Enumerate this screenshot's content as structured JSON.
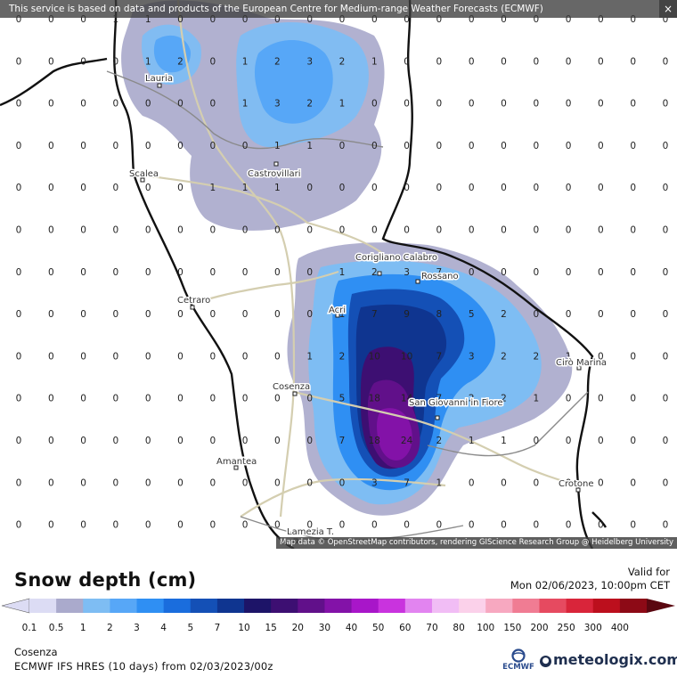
{
  "banner": {
    "text": "This service is based on data and products of the European Centre for Medium-range Weather Forecasts (ECMWF)",
    "close_symbol": "×"
  },
  "attribution": "Map data © OpenStreetMap contributors, rendering GIScience Research Group @ Heidelberg University",
  "cities": [
    "Lauria",
    "Castrovillari",
    "Scalea",
    "Corigliano Calabro",
    "Rossano",
    "Acri",
    "Cetraro",
    "Cosenza",
    "San Giovanni in Fiore",
    "Cirò Marina",
    "Amantea",
    "Crotone",
    "Lamezia T."
  ],
  "grid_values": [
    [
      "0",
      "0",
      "0",
      "1",
      "1",
      "0",
      "0",
      "0",
      "0",
      "0",
      "0",
      "0",
      "0",
      "0",
      "0",
      "0",
      "0",
      "0",
      "0",
      "0",
      "0"
    ],
    [
      "0",
      "0",
      "0",
      "0",
      "1",
      "2",
      "0",
      "1",
      "2",
      "3",
      "2",
      "1",
      "0",
      "0",
      "0",
      "0",
      "0",
      "0",
      "0",
      "0",
      "0"
    ],
    [
      "0",
      "0",
      "0",
      "0",
      "0",
      "0",
      "0",
      "1",
      "3",
      "2",
      "1",
      "0",
      "0",
      "0",
      "0",
      "0",
      "0",
      "0",
      "0",
      "0",
      "0"
    ],
    [
      "0",
      "0",
      "0",
      "0",
      "0",
      "0",
      "0",
      "0",
      "1",
      "1",
      "0",
      "0",
      "0",
      "0",
      "0",
      "0",
      "0",
      "0",
      "0",
      "0",
      "0"
    ],
    [
      "0",
      "0",
      "0",
      "0",
      "0",
      "0",
      "1",
      "1",
      "1",
      "0",
      "0",
      "0",
      "0",
      "0",
      "0",
      "0",
      "0",
      "0",
      "0",
      "0",
      "0"
    ],
    [
      "0",
      "0",
      "0",
      "0",
      "0",
      "0",
      "0",
      "0",
      "0",
      "0",
      "0",
      "0",
      "0",
      "0",
      "0",
      "0",
      "0",
      "0",
      "0",
      "0",
      "0"
    ],
    [
      "0",
      "0",
      "0",
      "0",
      "0",
      "0",
      "0",
      "0",
      "0",
      "0",
      "1",
      "2",
      "3",
      "7",
      "0",
      "0",
      "0",
      "0",
      "0",
      "0",
      "0"
    ],
    [
      "0",
      "0",
      "0",
      "0",
      "0",
      "0",
      "0",
      "0",
      "0",
      "0",
      "1",
      "7",
      "9",
      "8",
      "5",
      "2",
      "0",
      "0",
      "0",
      "0",
      "0"
    ],
    [
      "0",
      "0",
      "0",
      "0",
      "0",
      "0",
      "0",
      "0",
      "0",
      "1",
      "2",
      "10",
      "10",
      "7",
      "3",
      "2",
      "2",
      "1",
      "0",
      "0",
      "0"
    ],
    [
      "0",
      "0",
      "0",
      "0",
      "0",
      "0",
      "0",
      "0",
      "0",
      "0",
      "5",
      "18",
      "14",
      "7",
      "2",
      "2",
      "1",
      "0",
      "0",
      "0",
      "0"
    ],
    [
      "0",
      "0",
      "0",
      "0",
      "0",
      "0",
      "0",
      "0",
      "0",
      "0",
      "7",
      "18",
      "24",
      "2",
      "1",
      "1",
      "0",
      "0",
      "0",
      "0",
      "0"
    ],
    [
      "0",
      "0",
      "0",
      "0",
      "0",
      "0",
      "0",
      "0",
      "0",
      "0",
      "0",
      "3",
      "7",
      "1",
      "0",
      "0",
      "0",
      "0",
      "0",
      "0",
      "0"
    ],
    [
      "0",
      "0",
      "0",
      "0",
      "0",
      "0",
      "0",
      "0",
      "0",
      "0",
      "0",
      "0",
      "0",
      "0",
      "0",
      "0",
      "0",
      "0",
      "0",
      "0",
      "0"
    ]
  ],
  "colors": {
    "land": "#ffffff",
    "sea": "#ffffff",
    "coast": "#111111",
    "road": "#d4ceb0",
    "border": "#8a8a8a"
  },
  "legend": {
    "title": "Snow depth (cm)",
    "valid_label": "Valid for",
    "valid_time": "Mon 02/06/2023, 10:00pm CET",
    "ticks": [
      "0.1",
      "0.5",
      "1",
      "2",
      "3",
      "4",
      "5",
      "7",
      "10",
      "15",
      "20",
      "30",
      "40",
      "50",
      "60",
      "70",
      "80",
      "100",
      "150",
      "200",
      "250",
      "300",
      "400"
    ],
    "colors": [
      "#dcdcf4",
      "#aaaacc",
      "#7ebdf3",
      "#57a7f7",
      "#2f8ff3",
      "#1a6ddd",
      "#1450b6",
      "#0f3590",
      "#1d1468",
      "#3d0f72",
      "#61108a",
      "#8312a8",
      "#a816c9",
      "#c933de",
      "#e284f0",
      "#f1bdf5",
      "#fbd1ea",
      "#f7a8c0",
      "#f07c93",
      "#e64a60",
      "#d9253a",
      "#bc0f1d",
      "#8d0a16",
      "#5a0710"
    ]
  },
  "location": "Cosenza",
  "model_text": "ECMWF IFS HRES (10 days) from 02/03/2023/00z",
  "brand": {
    "ecmwf_label": "ECMWF",
    "name": "meteologix.com",
    "icon": "globe-icon"
  }
}
